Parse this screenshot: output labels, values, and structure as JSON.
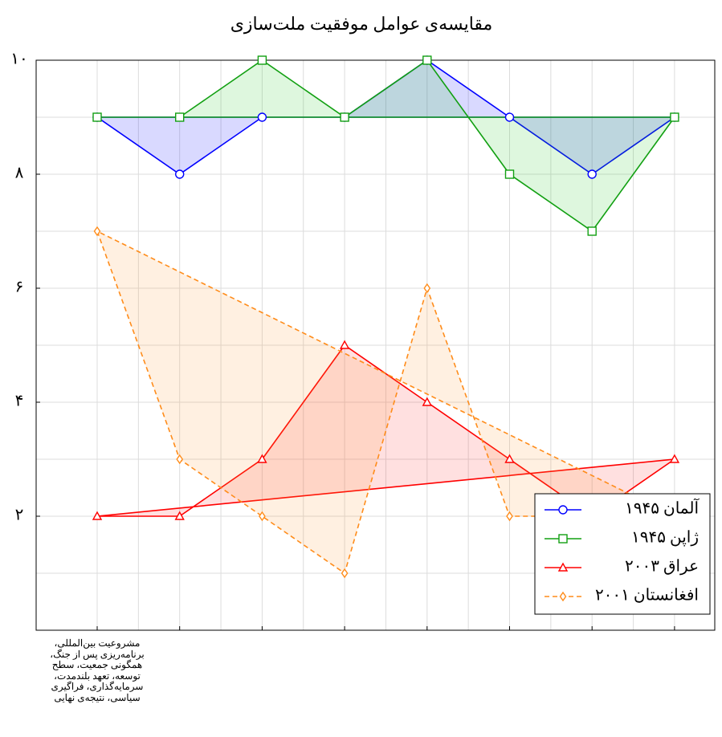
{
  "chart_data": {
    "type": "line",
    "title": "مقایسه‌ی عوامل موفقیت ملت‌سازی",
    "categories": [
      "مشروعیت بین‌المللی، برنامه‌ریزی پس از جنگ، همگونی جمعیت، سطح توسعه، تعهد بلندمدت، سرمایه‌گذاری، فراگیری سیاسی، نتیجه‌ی نهایی",
      null,
      null,
      null,
      null,
      null,
      null,
      null
    ],
    "series": [
      {
        "name": "آلمان ۱۹۴۵",
        "color": "#0000ff",
        "fill": "#0000ff",
        "marker": "circle",
        "dashed": false,
        "values": [
          9,
          8,
          9,
          9,
          10,
          9,
          8,
          9
        ]
      },
      {
        "name": "ژاپن ۱۹۴۵",
        "color": "#12a012",
        "fill": "#22cc22",
        "marker": "square",
        "dashed": false,
        "values": [
          9,
          9,
          10,
          9,
          10,
          8,
          7,
          9
        ]
      },
      {
        "name": "عراق ۲۰۰۳",
        "color": "#ff0000",
        "fill": "#ff3030",
        "marker": "triangle",
        "dashed": false,
        "values": [
          2,
          2,
          3,
          5,
          4,
          3,
          2,
          3
        ]
      },
      {
        "name": "افغانستان ۲۰۰۱",
        "color": "#ff8c1a",
        "fill": "#ff9933",
        "marker": "diamond",
        "dashed": true,
        "values": [
          7,
          3,
          2,
          1,
          6,
          2,
          2,
          2
        ]
      }
    ],
    "ylim": [
      0,
      10
    ],
    "yticks": [
      {
        "value": 2,
        "label": "۲"
      },
      {
        "value": 4,
        "label": "۴"
      },
      {
        "value": 6,
        "label": "۶"
      },
      {
        "value": 8,
        "label": "۸"
      },
      {
        "value": 10,
        "label": "۱۰"
      }
    ],
    "minor_yticks": [
      1,
      3,
      5,
      7,
      9
    ],
    "grid": true,
    "legend": "bottom-right"
  }
}
